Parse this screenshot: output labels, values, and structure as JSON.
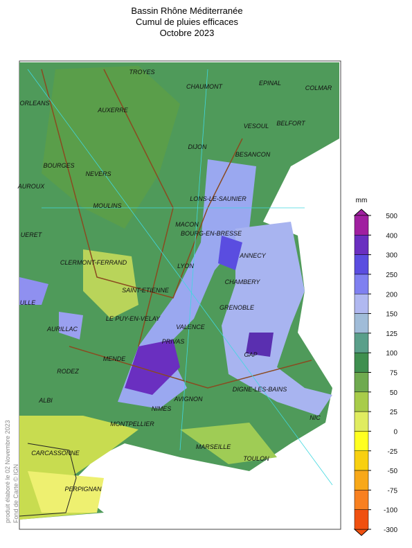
{
  "title": [
    "Bassin Rhône Méditerranée",
    "Cumul de pluies efficaces",
    "Octobre 2023"
  ],
  "credit": [
    "produit élaboré le 02 Novembre 2023",
    "Fond de Carte © IGN"
  ],
  "cities": [
    "TROYES",
    "CHAUMONT",
    "EPINAL",
    "COLMAR",
    "ORLEANS",
    "AUXERRE",
    "VESOUL",
    "BELFORT",
    "DIJON",
    "BESANCON",
    "BOURGES",
    "NEVERS",
    "AUROUX",
    "LONS-LE-SAUNIER",
    "MOULINS",
    "MACON",
    "UERET",
    "BOURG-EN-BRESSE",
    "ANNECY",
    "CLERMONT-FERRAND",
    "LYON",
    "CHAMBERY",
    "SAINT-ETIENNE",
    "ULLE",
    "GRENOBLE",
    "AURILLAC",
    "LE PUY-EN-VELAY",
    "VALENCE",
    "PRIVAS",
    "GAP",
    "MENDE",
    "RODEZ",
    "DIGNE-LES-BAINS",
    "ALBI",
    "AVIGNON",
    "NIMES",
    "NIC",
    "MONTPELLIER",
    "CARCASSONNE",
    "MARSEILLE",
    "TOULON",
    "PERPIGNAN"
  ],
  "legend": {
    "unit": "mm",
    "ticks": [
      500,
      400,
      300,
      250,
      200,
      150,
      125,
      100,
      75,
      50,
      25,
      0,
      -25,
      -50,
      -75,
      -100,
      -300
    ],
    "colors": [
      "#a020a0",
      "#6a2fc0",
      "#5a4de0",
      "#7f80f0",
      "#b0b8f0",
      "#a0bcd8",
      "#5a9f8a",
      "#3f8f4f",
      "#6faa4f",
      "#a8cc4a",
      "#e0ec60",
      "#ffff20",
      "#f8d010",
      "#f8a818",
      "#f88020",
      "#f05010"
    ]
  }
}
